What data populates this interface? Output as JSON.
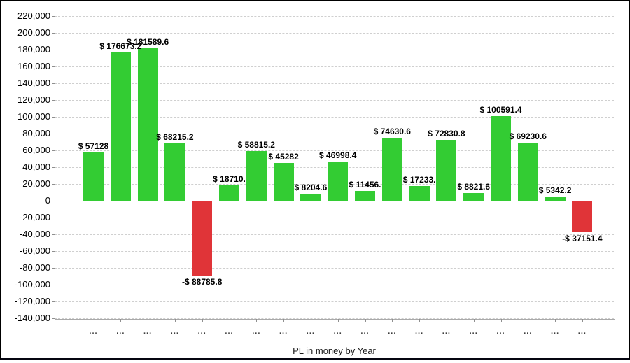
{
  "chart_data": {
    "type": "bar",
    "title": "",
    "xlabel": "PL in money by Year",
    "ylabel": "",
    "ylim": [
      -140000,
      220000
    ],
    "ytick_step": 20000,
    "grid": "horizontal-dashed",
    "legend": "none",
    "y_ticks": [
      "220,000",
      "200,000",
      "180,000",
      "160,000",
      "140,000",
      "120,000",
      "100,000",
      "80,000",
      "60,000",
      "40,000",
      "20,000",
      "0",
      "-20,000",
      "-40,000",
      "-60,000",
      "-80,000",
      "-100,000",
      "-120,000",
      "-140,000"
    ],
    "categories": [
      "...",
      "...",
      "...",
      "...",
      "...",
      "...",
      "...",
      "...",
      "...",
      "...",
      "...",
      "...",
      "...",
      "...",
      "...",
      "...",
      "...",
      "...",
      "..."
    ],
    "values": [
      57128,
      176673.2,
      181589.6,
      68215.2,
      -88785.8,
      18710,
      58815.2,
      45282,
      8204.6,
      46998.4,
      11456,
      74630.6,
      17233,
      72830.8,
      8821.6,
      100591.4,
      69230.6,
      5342.2,
      -37151.4
    ],
    "bar_labels": [
      "$ 57128",
      "$ 176673.2",
      "$ 181589.6",
      "$ 68215.2",
      "-$ 88785.8",
      "$ 18710.",
      "$ 58815.2",
      "$ 45282",
      "$ 8204.6",
      "$ 46998.4",
      "$ 11456.",
      "$ 74630.6",
      "$ 17233.",
      "$ 72830.8",
      "$ 8821.6",
      "$ 100591.4",
      "$ 69230.6",
      "$ 5342.2",
      "-$ 37151.4"
    ],
    "colors": {
      "positive_bar": "#33cc33",
      "negative_bar": "#e03438",
      "gridline": "#cfcfcf",
      "plot_border": "#a9a9a9",
      "label_text": "#000000"
    }
  }
}
